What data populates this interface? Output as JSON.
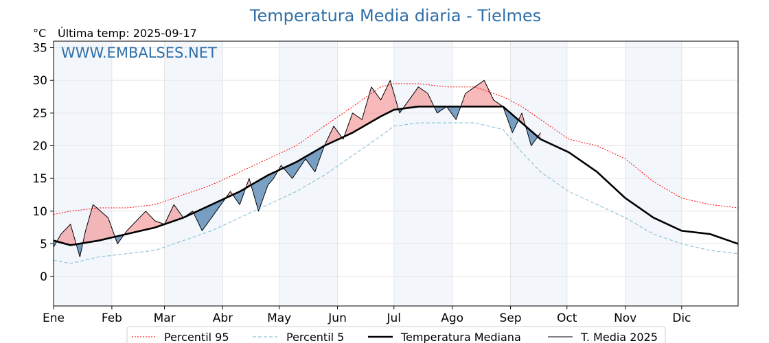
{
  "chart_data": {
    "type": "line",
    "title": "Temperatura Media diaria - Tielmes",
    "unit_label": "°C",
    "last_update": "Última temp: 2025-09-17",
    "watermark": "WWW.EMBALSES.NET",
    "grid": true,
    "ylim": [
      -4.5,
      36
    ],
    "yticks": [
      0,
      5,
      10,
      15,
      20,
      25,
      30,
      35
    ],
    "months": [
      "Ene",
      "Feb",
      "Mar",
      "Abr",
      "May",
      "Jun",
      "Jul",
      "Ago",
      "Sep",
      "Oct",
      "Nov",
      "Dic"
    ],
    "month_starts": [
      1,
      32,
      60,
      91,
      121,
      152,
      182,
      213,
      244,
      274,
      305,
      335
    ],
    "days_in_year": 365,
    "legend_position": "bottom-center",
    "colors": {
      "p95": "#ff0000",
      "p5": "#8fc3d8",
      "median": "#000000",
      "media2025": "#000000",
      "above": "#f08080",
      "below": "#4f81b0",
      "band": "#dce9f5"
    },
    "series": [
      {
        "name": "Percentil 95",
        "style": "dotted-red",
        "x": [
          1,
          10,
          25,
          40,
          55,
          70,
          85,
          100,
          115,
          130,
          145,
          160,
          175,
          182,
          195,
          210,
          225,
          240,
          250,
          260,
          275,
          290,
          305,
          320,
          335,
          350,
          365
        ],
        "values": [
          9.5,
          10,
          10.5,
          10.5,
          11,
          12.5,
          14,
          16,
          18,
          20,
          23,
          26,
          29,
          29.5,
          29.5,
          29,
          29,
          27.5,
          26,
          24,
          21,
          20,
          18,
          14.5,
          12,
          11,
          10.5
        ]
      },
      {
        "name": "Percentil 5",
        "style": "dashed-lightblue",
        "x": [
          1,
          10,
          25,
          40,
          55,
          70,
          85,
          100,
          115,
          130,
          145,
          160,
          175,
          182,
          195,
          210,
          225,
          240,
          250,
          260,
          275,
          290,
          305,
          320,
          335,
          350,
          365
        ],
        "values": [
          2.5,
          2,
          3,
          3.5,
          4,
          5.5,
          7,
          9,
          11,
          13,
          15.5,
          18.5,
          21.5,
          23,
          23.5,
          23.5,
          23.5,
          22.5,
          19,
          16,
          13,
          11,
          9,
          6.5,
          5,
          4,
          3.5
        ]
      },
      {
        "name": "Temperatura Mediana",
        "style": "thick-black",
        "x": [
          1,
          10,
          25,
          40,
          55,
          70,
          85,
          100,
          115,
          130,
          145,
          160,
          175,
          182,
          195,
          210,
          225,
          240,
          250,
          260,
          275,
          290,
          305,
          320,
          335,
          350,
          365
        ],
        "values": [
          5.5,
          4.8,
          5.5,
          6.5,
          7.5,
          9,
          11,
          13,
          15.5,
          17.5,
          20,
          22,
          24.5,
          25.5,
          26,
          26,
          26,
          26,
          23.5,
          21,
          19,
          16,
          12,
          9,
          7,
          6.5,
          5
        ]
      },
      {
        "name": "T. Media 2025",
        "style": "thin-black",
        "x": [
          1,
          5,
          10,
          15,
          18,
          22,
          30,
          35,
          40,
          45,
          50,
          55,
          60,
          65,
          70,
          75,
          80,
          85,
          90,
          95,
          100,
          105,
          110,
          115,
          118,
          122,
          128,
          135,
          140,
          145,
          150,
          155,
          160,
          165,
          170,
          175,
          180,
          185,
          190,
          195,
          200,
          205,
          210,
          215,
          220,
          225,
          230,
          235,
          240,
          245,
          250,
          255,
          260
        ],
        "values": [
          4.5,
          6.5,
          8,
          3,
          7,
          11,
          9,
          5,
          7,
          8.5,
          10,
          8.5,
          8,
          11,
          9,
          10,
          7,
          9,
          11,
          13,
          11,
          15,
          10,
          14,
          15,
          17,
          15,
          18,
          16,
          20,
          23,
          21,
          25,
          24,
          29,
          27,
          30,
          25,
          27,
          29,
          28,
          25,
          26,
          24,
          28,
          29,
          30,
          27,
          26,
          22,
          25,
          20,
          22
        ]
      }
    ],
    "legend": [
      "Percentil 95",
      "Percentil 5",
      "Temperatura Mediana",
      "T. Media 2025"
    ]
  }
}
